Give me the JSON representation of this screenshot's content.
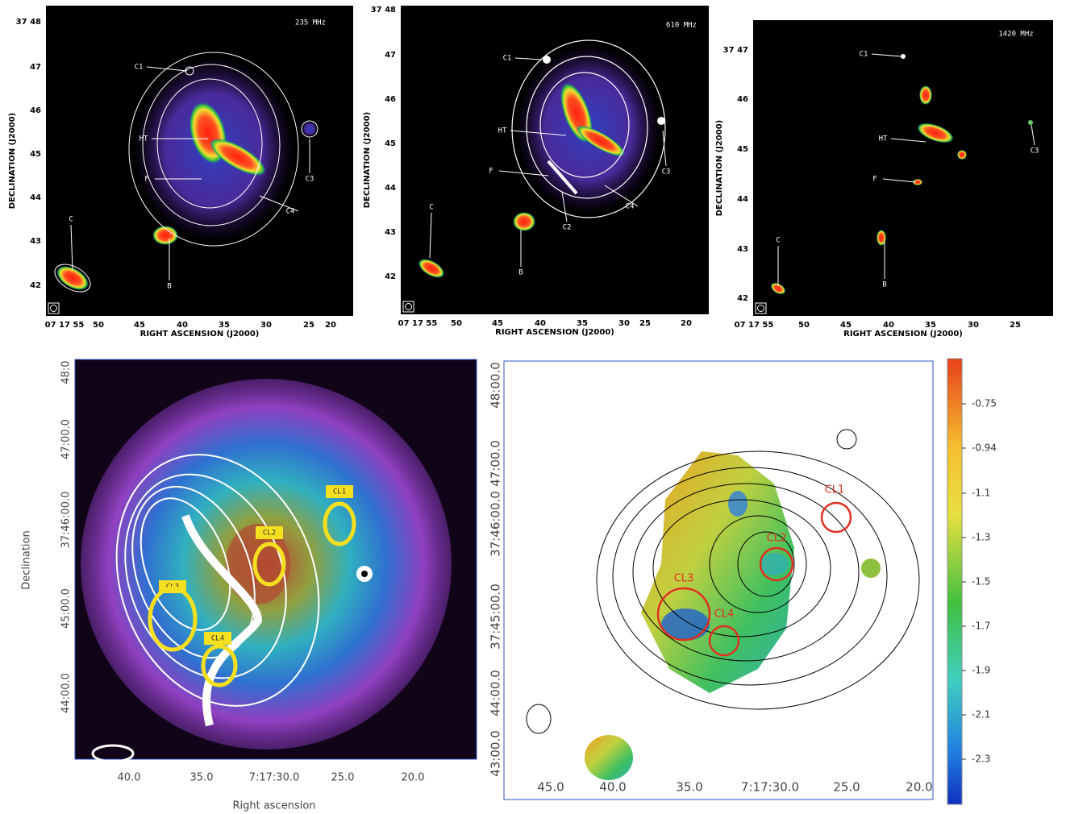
{
  "top_panels": [
    {
      "frequency": "235 MHz",
      "x_axis_label": "RIGHT ASCENSION (J2000)",
      "y_axis_label": "DECLINATION (J2000)",
      "x_ticks": [
        "07 17 55",
        "50",
        "45",
        "40",
        "35",
        "30",
        "25",
        "20"
      ],
      "y_ticks": [
        "37 48",
        "47",
        "46",
        "45",
        "44",
        "43",
        "42"
      ],
      "source_labels": [
        "C1",
        "HT",
        "F",
        "C",
        "B",
        "C3",
        "C4"
      ]
    },
    {
      "frequency": "610 MHz",
      "x_axis_label": "RIGHT ASCENSION (J2000)",
      "y_axis_label": "DECLINATION (J2000)",
      "x_ticks": [
        "07 17 55",
        "50",
        "45",
        "40",
        "35",
        "30",
        "25",
        "20"
      ],
      "y_ticks": [
        "37 48",
        "47",
        "46",
        "45",
        "44",
        "43",
        "42"
      ],
      "source_labels": [
        "C1",
        "HT",
        "F",
        "C",
        "B",
        "C2",
        "C3",
        "C4"
      ]
    },
    {
      "frequency": "1420 MHz",
      "x_axis_label": "RIGHT ASCENSION (J2000)",
      "y_axis_label": "DECLINATION (J2000)",
      "x_ticks": [
        "07 17 55",
        "50",
        "45",
        "40",
        "35",
        "30",
        "25"
      ],
      "y_ticks": [
        "37 47",
        "46",
        "45",
        "44",
        "43",
        "42"
      ],
      "source_labels": [
        "C1",
        "HT",
        "F",
        "C",
        "B",
        "C3"
      ]
    }
  ],
  "bottom_left": {
    "x_axis_label": "Right ascension",
    "y_axis_label": "Declination",
    "x_ticks": [
      "40.0",
      "35.0",
      "7:17:30.0",
      "25.0",
      "20.0"
    ],
    "y_ticks": [
      "48:0",
      "47:00.0",
      "37:46:00.0",
      "45:00.0",
      "44:00.0"
    ],
    "region_labels": [
      "CL1",
      "CL2",
      "CL3",
      "CL4"
    ]
  },
  "bottom_right": {
    "x_ticks": [
      "45.0",
      "40.0",
      "35.0",
      "7:17:30.0",
      "25.0",
      "20.0"
    ],
    "y_ticks": [
      "48:00.0",
      "47:00.0",
      "37:46:00.0",
      "37:45:00.0",
      "44:00.0",
      "43:00.0"
    ],
    "region_labels": [
      "CL1",
      "CL2",
      "CL3",
      "CL4"
    ],
    "colorbar_ticks": [
      "-0.75",
      "-0.94",
      "-1.1",
      "-1.3",
      "-1.5",
      "-1.7",
      "-1.9",
      "-2.1",
      "-2.3"
    ]
  }
}
